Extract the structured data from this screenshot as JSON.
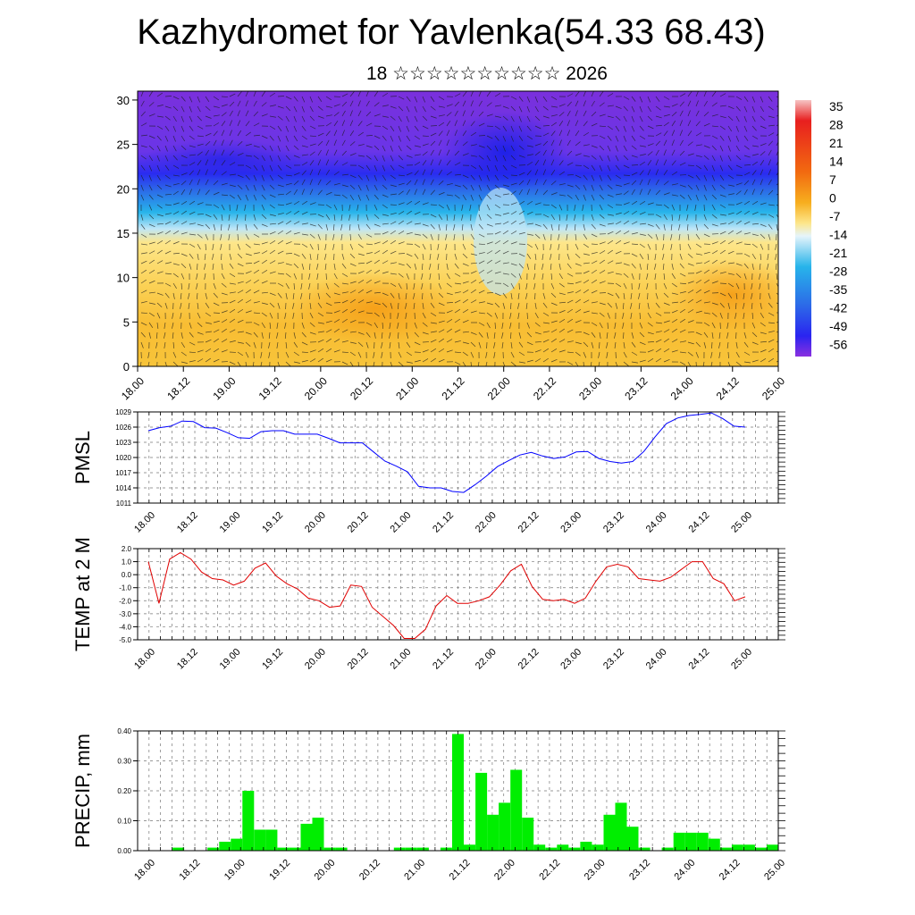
{
  "title": "Kazhydromet for Yavlenka(54.33 68.43)",
  "subtitle": "18 ☆☆☆☆☆☆☆☆☆☆ 2026",
  "time_labels": [
    "18.00",
    "18.12",
    "19.00",
    "19.12",
    "20.00",
    "20.12",
    "21.00",
    "21.12",
    "22.00",
    "22.12",
    "23.00",
    "23.12",
    "24.00",
    "24.12",
    "25.00"
  ],
  "chart_data": [
    {
      "type": "heatmap",
      "name": "cross-section",
      "xlabel": "",
      "ylabel": "",
      "ylim": [
        0,
        31
      ],
      "y_ticks": [
        "0",
        "5",
        "10",
        "15",
        "20",
        "25",
        "30"
      ],
      "colorbar_labels": [
        "35",
        "28",
        "21",
        "14",
        "7",
        "0",
        "-7",
        "-14",
        "-21",
        "-28",
        "-35",
        "-42",
        "-49",
        "-56"
      ],
      "colors": {
        "violet": "#7a2fe0",
        "blue": "#2a24f0",
        "cyan": "#27b4ea",
        "lightblue": "#bfe6f7",
        "yellow": "#fde68a",
        "orange": "#f7ae1e",
        "red": "#e81f1f"
      }
    },
    {
      "type": "line",
      "name": "PMSL",
      "ylabel": "PMSL",
      "ylim": [
        1011,
        1029
      ],
      "y_ticks": [
        "1011",
        "1014",
        "1017",
        "1020",
        "1023",
        "1026",
        "1029"
      ],
      "color": "#0000ff",
      "values": [
        1025.3,
        1025.9,
        1026.2,
        1027.2,
        1027.1,
        1025.9,
        1025.8,
        1024.9,
        1023.9,
        1023.8,
        1025.1,
        1025.3,
        1025.3,
        1024.6,
        1024.6,
        1024.6,
        1023.8,
        1022.9,
        1022.9,
        1022.9,
        1021.1,
        1019.3,
        1018.3,
        1017.2,
        1014.3,
        1014.0,
        1014.0,
        1013.3,
        1013.1,
        1014.6,
        1016.3,
        1018.2,
        1019.4,
        1020.5,
        1021.0,
        1020.3,
        1019.8,
        1020.1,
        1021.1,
        1021.2,
        1019.8,
        1019.2,
        1018.9,
        1019.2,
        1021.2,
        1024.1,
        1026.7,
        1027.8,
        1028.3,
        1028.5,
        1028.8,
        1027.7,
        1026.2,
        1026.0
      ]
    },
    {
      "type": "line",
      "name": "TEMP at 2 M",
      "ylabel": "TEMP at 2 M",
      "ylim": [
        -5.0,
        2.0
      ],
      "y_ticks": [
        "-5.0",
        "-4.0",
        "-3.0",
        "-2.0",
        "-1.0",
        "0.0",
        "1.0",
        "2.0"
      ],
      "color": "#e00000",
      "values": [
        1.0,
        -2.2,
        1.2,
        1.7,
        1.2,
        0.2,
        -0.3,
        -0.4,
        -0.8,
        -0.5,
        0.5,
        0.9,
        -0.1,
        -0.7,
        -1.1,
        -1.8,
        -2.0,
        -2.5,
        -2.4,
        -0.8,
        -0.9,
        -2.5,
        -3.2,
        -3.9,
        -4.9,
        -4.9,
        -4.2,
        -2.4,
        -1.6,
        -2.2,
        -2.2,
        -2.0,
        -1.7,
        -0.8,
        0.3,
        0.8,
        -0.9,
        -1.9,
        -2.0,
        -1.9,
        -2.2,
        -1.8,
        -0.5,
        0.6,
        0.8,
        0.6,
        -0.3,
        -0.4,
        -0.5,
        -0.2,
        0.4,
        1.0,
        1.0,
        -0.3,
        -0.7,
        -2.0,
        -1.7
      ]
    },
    {
      "type": "bar",
      "name": "PRECIP",
      "ylabel": "PRECIP, mm",
      "ylim": [
        0,
        0.4
      ],
      "y_ticks": [
        "0.00",
        "0.10",
        "0.20",
        "0.30",
        "0.40"
      ],
      "color": "#00ee00",
      "values": [
        0,
        0,
        0,
        0.01,
        0,
        0,
        0.01,
        0.03,
        0.04,
        0.2,
        0.07,
        0.07,
        0.01,
        0.01,
        0.09,
        0.11,
        0.01,
        0.01,
        0,
        0,
        0,
        0,
        0.01,
        0.01,
        0.01,
        0,
        0.01,
        0.39,
        0.02,
        0.26,
        0.12,
        0.16,
        0.27,
        0.11,
        0.02,
        0.01,
        0.02,
        0.01,
        0.03,
        0.02,
        0.12,
        0.16,
        0.08,
        0.01,
        0,
        0.01,
        0.06,
        0.06,
        0.06,
        0.04,
        0.01,
        0.02,
        0.02,
        0.01,
        0.02
      ]
    }
  ]
}
